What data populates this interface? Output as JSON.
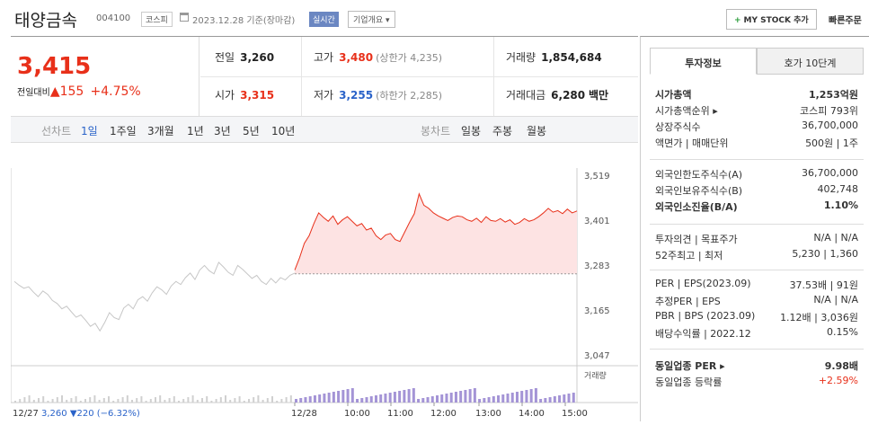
{
  "header": {
    "stock_name": "태양금속",
    "stock_code": "004100",
    "market": "코스피",
    "date_text": "2023.12.28 기준(장마감)",
    "live_label": "실시간",
    "company_info": "기업개요",
    "mystock_label": "MY STOCK 추가",
    "quick_order": "빠른주문"
  },
  "price": {
    "current": "3,415",
    "change_label": "전일대비",
    "change_arrow": "▲",
    "change_value": "155",
    "change_pct": "+4.75%"
  },
  "summary": {
    "prev_label": "전일",
    "prev": "3,260",
    "high_label": "고가",
    "high": "3,480",
    "upper_limit": "(상한가 4,235)",
    "volume_label": "거래량",
    "volume": "1,854,684",
    "open_label": "시가",
    "open": "3,315",
    "low_label": "저가",
    "low": "3,255",
    "lower_limit": "(하한가 2,285)",
    "amount_label": "거래대금",
    "amount": "6,280",
    "amount_unit": "백만"
  },
  "tabs": {
    "line_label": "선차트",
    "periods": [
      "1일",
      "1주일",
      "3개월",
      "1년",
      "3년",
      "5년",
      "10년"
    ],
    "candle_label": "봉차트",
    "candles": [
      "일봉",
      "주봉",
      "월봉"
    ]
  },
  "chart_data": {
    "type": "line",
    "y_ticks": [
      3519,
      3401,
      3283,
      3165,
      3047
    ],
    "ylim": [
      3047,
      3519
    ],
    "baseline": 3260,
    "x_ticks": [
      "12/28",
      "10:00",
      "11:00",
      "12:00",
      "13:00",
      "14:00",
      "15:00"
    ],
    "prev_day_label": "12/27",
    "prev_day_close": "3,260",
    "prev_day_arrow": "▼",
    "prev_day_change": "220",
    "prev_day_pct": "(−6.32%)",
    "volume_label": "거래량",
    "series": [
      {
        "name": "12/27",
        "values": [
          3240,
          3230,
          3222,
          3226,
          3212,
          3200,
          3215,
          3206,
          3190,
          3182,
          3168,
          3175,
          3160,
          3146,
          3152,
          3138,
          3122,
          3130,
          3110,
          3132,
          3158,
          3145,
          3140,
          3170,
          3180,
          3168,
          3192,
          3200,
          3188,
          3210,
          3226,
          3218,
          3206,
          3228,
          3240,
          3232,
          3250,
          3262,
          3245,
          3270,
          3282,
          3268,
          3260,
          3290,
          3278,
          3264,
          3256,
          3282,
          3272,
          3260,
          3248,
          3256,
          3240,
          3232,
          3248,
          3236,
          3250,
          3244,
          3256,
          3262
        ]
      },
      {
        "name": "12/28",
        "values": [
          3270,
          3302,
          3340,
          3360,
          3392,
          3420,
          3408,
          3398,
          3412,
          3390,
          3402,
          3410,
          3398,
          3386,
          3392,
          3375,
          3380,
          3360,
          3350,
          3362,
          3366,
          3350,
          3345,
          3370,
          3395,
          3418,
          3470,
          3440,
          3432,
          3420,
          3412,
          3406,
          3400,
          3408,
          3412,
          3410,
          3402,
          3398,
          3406,
          3395,
          3410,
          3400,
          3398,
          3405,
          3396,
          3402,
          3390,
          3395,
          3405,
          3398,
          3402,
          3410,
          3420,
          3432,
          3422,
          3426,
          3418,
          3430,
          3420,
          3425
        ]
      }
    ]
  },
  "invest": {
    "tab_on": "투자정보",
    "tab_off": "호가 10단계",
    "rows1": [
      {
        "k": "시가총액",
        "v": "1,253억원",
        "bold": true
      },
      {
        "k": "시가총액순위 ▸",
        "v": "코스피 793위"
      },
      {
        "k": "상장주식수",
        "v": "36,700,000"
      },
      {
        "k": "액면가 | 매매단위",
        "v": "500원 | 1주"
      }
    ],
    "rows2": [
      {
        "k": "외국인한도주식수(A)",
        "v": "36,700,000"
      },
      {
        "k": "외국인보유주식수(B)",
        "v": "402,748"
      },
      {
        "k": "외국인소진율(B/A)",
        "v": "1.10%",
        "bold": true
      }
    ],
    "rows3": [
      {
        "k": "투자의견 | 목표주가",
        "v": "N/A | N/A"
      },
      {
        "k": "52주최고 | 최저",
        "v": "5,230 | 1,360"
      }
    ],
    "rows4": [
      {
        "k": "PER | EPS(2023.09)",
        "v": "37.53배 | 91원"
      },
      {
        "k": "추정PER | EPS",
        "v": "N/A | N/A"
      },
      {
        "k": "PBR | BPS (2023.09)",
        "v": "1.12배 | 3,036원"
      },
      {
        "k": "배당수익률 | 2022.12",
        "v": "0.15%"
      }
    ],
    "rows5": [
      {
        "k": "동일업종 PER ▸",
        "v": "9.98배",
        "bold": true
      },
      {
        "k": "동일업종 등락률",
        "v": "+2.59%",
        "red": true
      }
    ]
  },
  "colors": {
    "up": "#e8301a",
    "down": "#2a63c9",
    "fill": "#fde3e3",
    "volume": "#a494d6"
  }
}
